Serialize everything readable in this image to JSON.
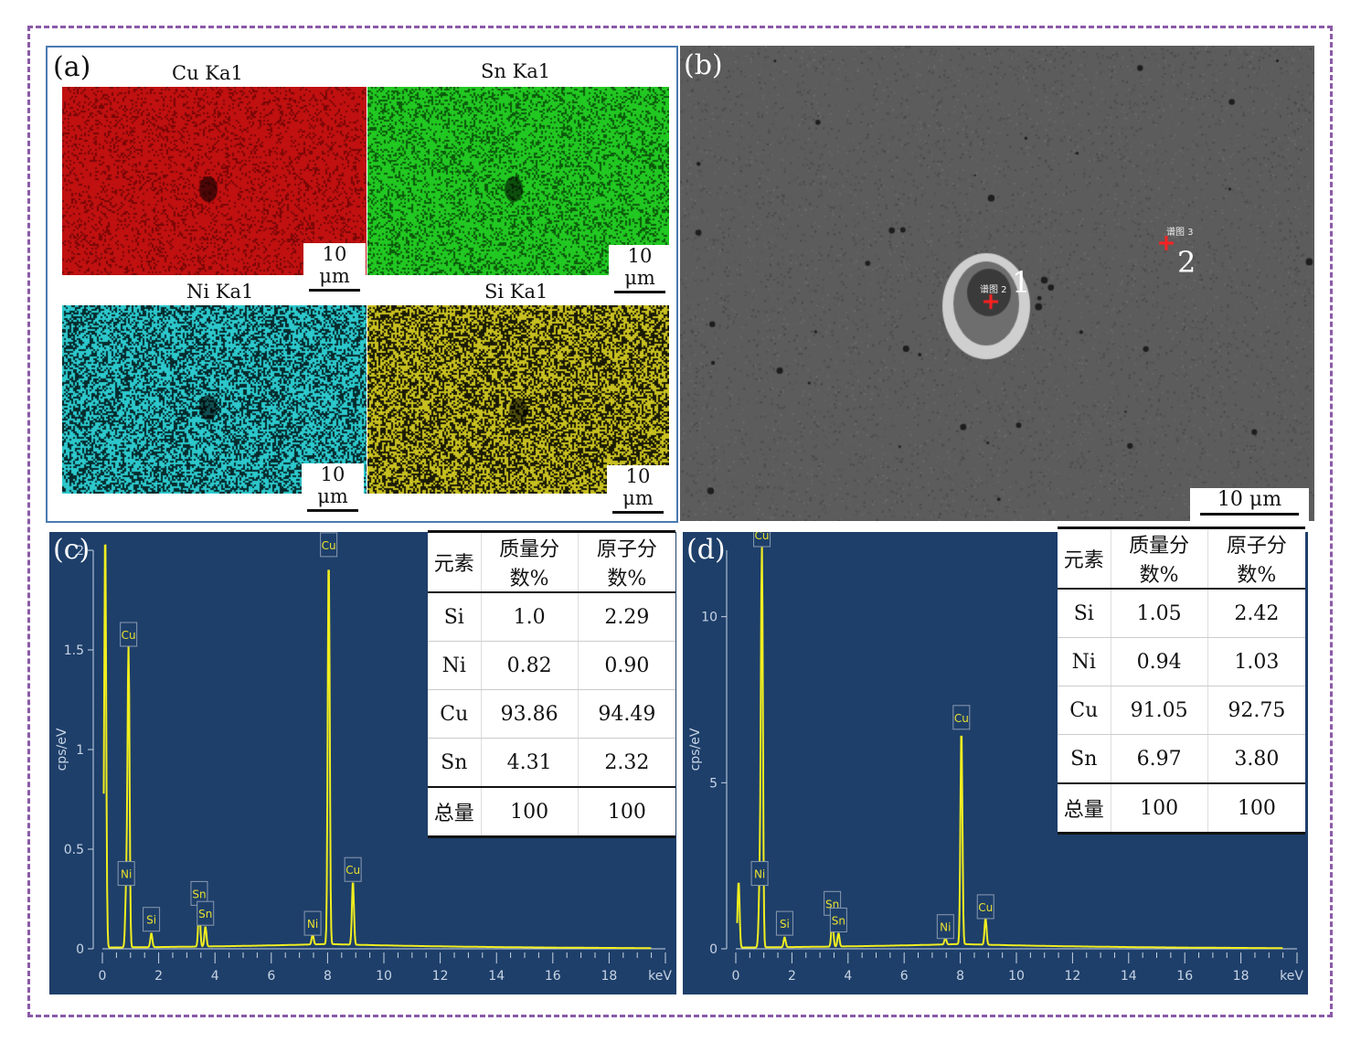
{
  "panel_a": {
    "label": "(a)",
    "maps": [
      {
        "title": "Cu Ka1",
        "scale": "10 μm",
        "color": "#c01010",
        "bg": "#7a0606"
      },
      {
        "title": "Sn Ka1",
        "scale": "10 μm",
        "color": "#22c822",
        "bg": "#0c5a0c"
      },
      {
        "title": "Ni Ka1",
        "scale": "10 μm",
        "color": "#2cc8cc",
        "bg": "#062a2c"
      },
      {
        "title": "Si Ka1",
        "scale": "10 μm",
        "color": "#c8c020",
        "bg": "#1a1a04"
      }
    ]
  },
  "panel_b": {
    "label": "(b)",
    "point1": "1",
    "point2": "2",
    "tag1": "谱图 2",
    "tag2": "谱图 3",
    "scale": "10 μm"
  },
  "panel_c": {
    "label": "(c)",
    "table": {
      "headers": [
        "元素",
        "质量分数%",
        "原子分数%"
      ],
      "rows": [
        [
          "Si",
          "1.0",
          "2.29"
        ],
        [
          "Ni",
          "0.82",
          "0.90"
        ],
        [
          "Cu",
          "93.86",
          "94.49"
        ],
        [
          "Sn",
          "4.31",
          "2.32"
        ]
      ],
      "total": [
        "总量",
        "100",
        "100"
      ]
    }
  },
  "panel_d": {
    "label": "(d)",
    "table": {
      "headers": [
        "元素",
        "质量分数%",
        "原子分数%"
      ],
      "rows": [
        [
          "Si",
          "1.05",
          "2.42"
        ],
        [
          "Ni",
          "0.94",
          "1.03"
        ],
        [
          "Cu",
          "91.05",
          "92.75"
        ],
        [
          "Sn",
          "6.97",
          "3.80"
        ]
      ],
      "total": [
        "总量",
        "100",
        "100"
      ]
    }
  },
  "chart_data": [
    {
      "type": "line",
      "ylabel": "cps/eV",
      "xlabel": "keV",
      "xlim": [
        0,
        20
      ],
      "ylim": [
        0,
        2.0
      ],
      "xticks": [
        "0",
        "2",
        "4",
        "6",
        "8",
        "10",
        "12",
        "14",
        "16",
        "18",
        "keV"
      ],
      "yticks": [
        "0",
        "0.5",
        "1",
        "1.5",
        "2"
      ],
      "peaks": [
        {
          "label": "",
          "x": 0.1,
          "y": 2.1
        },
        {
          "label": "Cu",
          "x": 0.93,
          "y": 1.5
        },
        {
          "label": "Ni",
          "x": 0.85,
          "y": 0.3
        },
        {
          "label": "Si",
          "x": 1.74,
          "y": 0.07
        },
        {
          "label": "Sn",
          "x": 3.44,
          "y": 0.2
        },
        {
          "label": "Sn",
          "x": 3.66,
          "y": 0.1
        },
        {
          "label": "Ni",
          "x": 7.47,
          "y": 0.05
        },
        {
          "label": "Cu",
          "x": 8.04,
          "y": 1.95
        },
        {
          "label": "Cu",
          "x": 8.9,
          "y": 0.32
        }
      ]
    },
    {
      "type": "line",
      "ylabel": "cps/eV",
      "xlabel": "keV",
      "xlim": [
        0,
        20
      ],
      "ylim": [
        0,
        12
      ],
      "xticks": [
        "0",
        "2",
        "4",
        "6",
        "8",
        "10",
        "12",
        "14",
        "16",
        "18",
        "keV"
      ],
      "yticks": [
        "0",
        "5",
        "10"
      ],
      "peaks": [
        {
          "label": "",
          "x": 0.1,
          "y": 2.0
        },
        {
          "label": "Cu",
          "x": 0.93,
          "y": 12.0
        },
        {
          "label": "Ni",
          "x": 0.85,
          "y": 1.8
        },
        {
          "label": "Si",
          "x": 1.74,
          "y": 0.3
        },
        {
          "label": "Sn",
          "x": 3.44,
          "y": 0.9
        },
        {
          "label": "Sn",
          "x": 3.66,
          "y": 0.4
        },
        {
          "label": "Ni",
          "x": 7.47,
          "y": 0.2
        },
        {
          "label": "Cu",
          "x": 8.04,
          "y": 6.5
        },
        {
          "label": "Cu",
          "x": 8.9,
          "y": 0.8
        }
      ]
    }
  ]
}
